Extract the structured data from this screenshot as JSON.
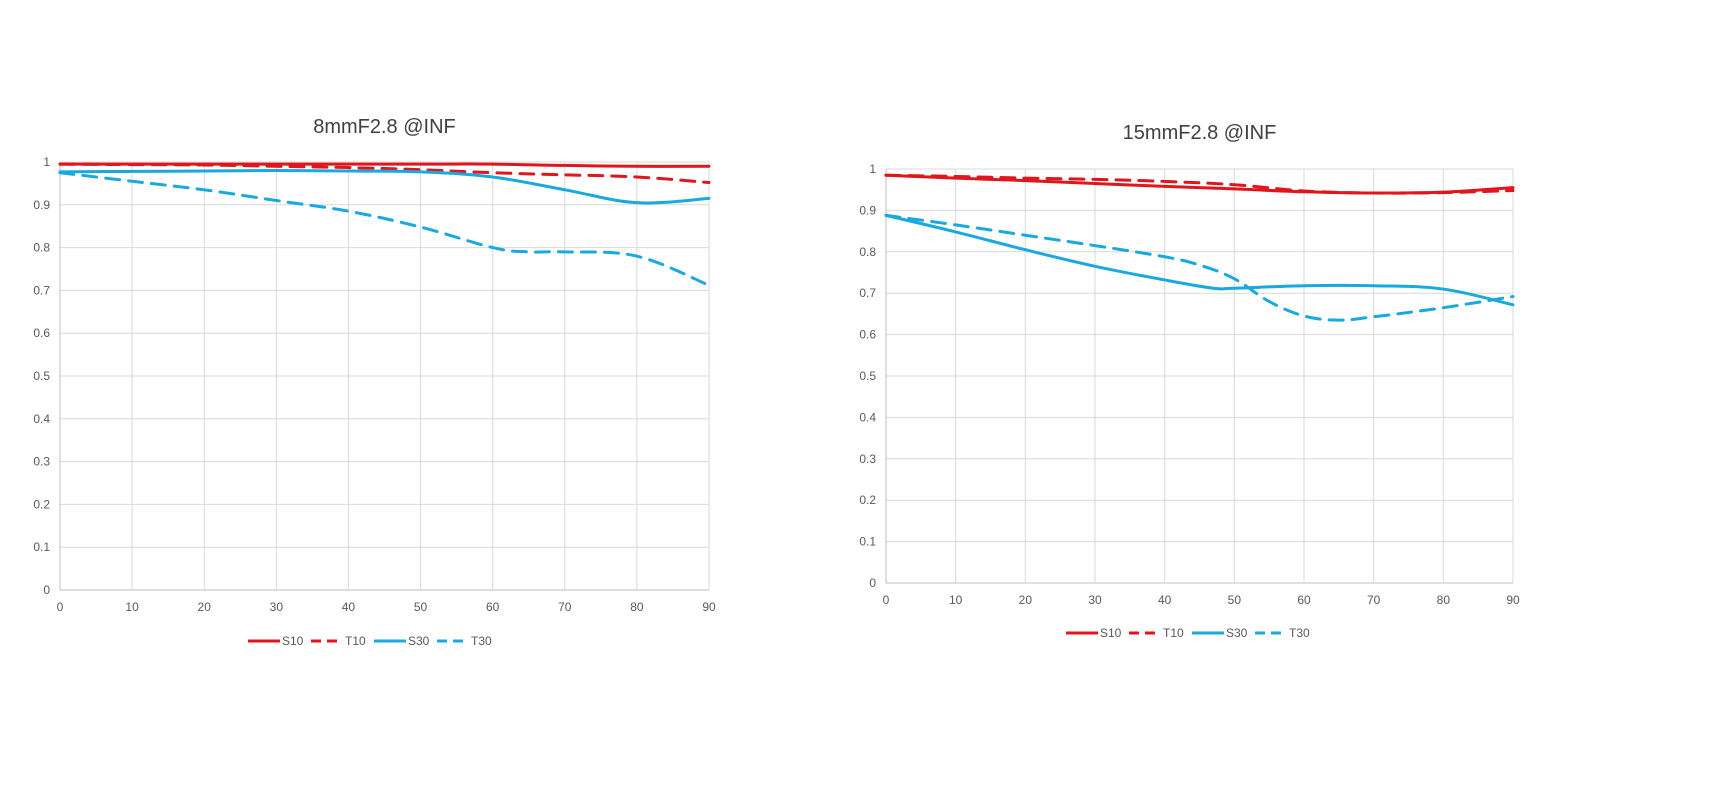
{
  "chart_data": [
    {
      "type": "line",
      "title": "8mmF2.8 @INF",
      "xlabel": "",
      "ylabel": "",
      "xlim": [
        0,
        90
      ],
      "ylim": [
        0,
        1
      ],
      "x_ticks": [
        0,
        10,
        20,
        30,
        40,
        50,
        60,
        70,
        80,
        90
      ],
      "y_ticks": [
        0,
        0.1,
        0.2,
        0.3,
        0.4,
        0.5,
        0.6,
        0.7,
        0.8,
        0.9,
        1
      ],
      "x_tick_labels": [
        "0",
        "10",
        "20",
        "30",
        "40",
        "50",
        "60",
        "70",
        "80",
        "90"
      ],
      "y_tick_labels": [
        "0",
        "0.1",
        "0.2",
        "0.3",
        "0.4",
        "0.5",
        "0.6",
        "0.7",
        "0.8",
        "0.9",
        "1"
      ],
      "grid": true,
      "legend_position": "bottom",
      "series": [
        {
          "name": "S10",
          "color": "#e0161c",
          "style": "solid",
          "x": [
            0,
            10,
            20,
            30,
            40,
            50,
            60,
            70,
            80,
            90
          ],
          "y": [
            0.995,
            0.995,
            0.995,
            0.995,
            0.995,
            0.995,
            0.995,
            0.992,
            0.99,
            0.99
          ]
        },
        {
          "name": "T10",
          "color": "#e0161c",
          "style": "dashed",
          "x": [
            0,
            10,
            20,
            30,
            40,
            50,
            60,
            70,
            80,
            90
          ],
          "y": [
            0.995,
            0.994,
            0.993,
            0.99,
            0.987,
            0.982,
            0.975,
            0.97,
            0.965,
            0.952
          ]
        },
        {
          "name": "S30",
          "color": "#1aa8e0",
          "style": "solid",
          "x": [
            0,
            10,
            20,
            30,
            40,
            50,
            60,
            70,
            80,
            90
          ],
          "y": [
            0.977,
            0.978,
            0.979,
            0.98,
            0.979,
            0.977,
            0.965,
            0.935,
            0.905,
            0.915
          ]
        },
        {
          "name": "T30",
          "color": "#1aa8e0",
          "style": "dashed",
          "x": [
            0,
            10,
            20,
            30,
            40,
            50,
            60,
            65,
            70,
            80,
            90
          ],
          "y": [
            0.975,
            0.955,
            0.935,
            0.91,
            0.885,
            0.848,
            0.8,
            0.79,
            0.79,
            0.78,
            0.712
          ]
        }
      ]
    },
    {
      "type": "line",
      "title": "15mmF2.8 @INF",
      "xlabel": "",
      "ylabel": "",
      "xlim": [
        0,
        90
      ],
      "ylim": [
        0,
        1
      ],
      "x_ticks": [
        0,
        10,
        20,
        30,
        40,
        50,
        60,
        70,
        80,
        90
      ],
      "y_ticks": [
        0,
        0.1,
        0.2,
        0.3,
        0.4,
        0.5,
        0.6,
        0.7,
        0.8,
        0.9,
        1
      ],
      "x_tick_labels": [
        "0",
        "10",
        "20",
        "30",
        "40",
        "50",
        "60",
        "70",
        "80",
        "90"
      ],
      "y_tick_labels": [
        "0",
        "0.1",
        "0.2",
        "0.3",
        "0.4",
        "0.5",
        "0.6",
        "0.7",
        "0.8",
        "0.9",
        "1"
      ],
      "grid": true,
      "legend_position": "bottom",
      "series": [
        {
          "name": "S10",
          "color": "#e0161c",
          "style": "solid",
          "x": [
            0,
            10,
            20,
            30,
            40,
            50,
            60,
            70,
            80,
            90
          ],
          "y": [
            0.985,
            0.978,
            0.972,
            0.965,
            0.958,
            0.952,
            0.945,
            0.942,
            0.944,
            0.955
          ]
        },
        {
          "name": "T10",
          "color": "#e0161c",
          "style": "dashed",
          "x": [
            0,
            10,
            20,
            30,
            40,
            50,
            60,
            70,
            80,
            90
          ],
          "y": [
            0.985,
            0.982,
            0.978,
            0.975,
            0.97,
            0.962,
            0.947,
            0.942,
            0.943,
            0.948
          ]
        },
        {
          "name": "S30",
          "color": "#1aa8e0",
          "style": "solid",
          "x": [
            0,
            10,
            20,
            30,
            40,
            47,
            50,
            60,
            70,
            80,
            90
          ],
          "y": [
            0.888,
            0.848,
            0.805,
            0.765,
            0.732,
            0.712,
            0.712,
            0.718,
            0.718,
            0.71,
            0.672
          ]
        },
        {
          "name": "T30",
          "color": "#1aa8e0",
          "style": "dashed",
          "x": [
            0,
            10,
            20,
            30,
            40,
            45,
            50,
            55,
            60,
            65,
            70,
            80,
            90
          ],
          "y": [
            0.888,
            0.865,
            0.84,
            0.815,
            0.788,
            0.768,
            0.735,
            0.68,
            0.645,
            0.635,
            0.643,
            0.665,
            0.692
          ]
        }
      ]
    }
  ]
}
